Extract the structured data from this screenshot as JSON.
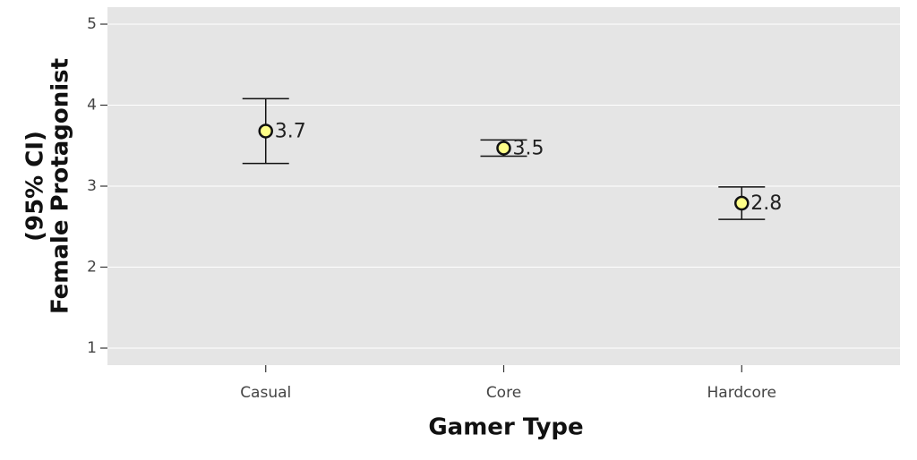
{
  "chart_data": {
    "type": "errorbar",
    "x_label": "Gamer Type",
    "y_label": [
      "(95% CI)",
      "Female Protagonist"
    ],
    "categories": [
      "Casual",
      "Core",
      "Hardcore"
    ],
    "values": [
      3.68,
      3.47,
      2.79
    ],
    "value_labels": [
      "3.7",
      "3.5",
      "2.8"
    ],
    "errors": [
      0.4,
      0.1,
      0.2
    ],
    "color": "#ffff88",
    "ylim": [
      0.79,
      5.21
    ],
    "yticks": [
      1,
      2,
      3,
      4,
      5
    ],
    "grid": true
  }
}
